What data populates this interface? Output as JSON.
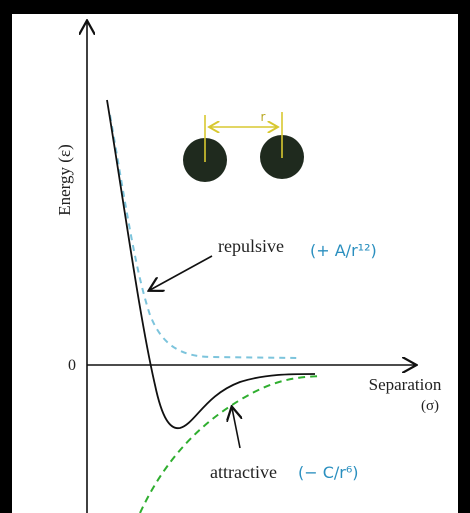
{
  "axes": {
    "y_label": "Energy (ε)",
    "zero": "0",
    "x_label": "Separation",
    "x_unit": "(σ)"
  },
  "atoms": {
    "distance_label": "r"
  },
  "annotations": {
    "repulsive": {
      "label": "repulsive",
      "formula": "(+ A/r¹²)"
    },
    "attractive": {
      "label": "attractive",
      "formula": "(− C/r⁶)"
    }
  }
}
